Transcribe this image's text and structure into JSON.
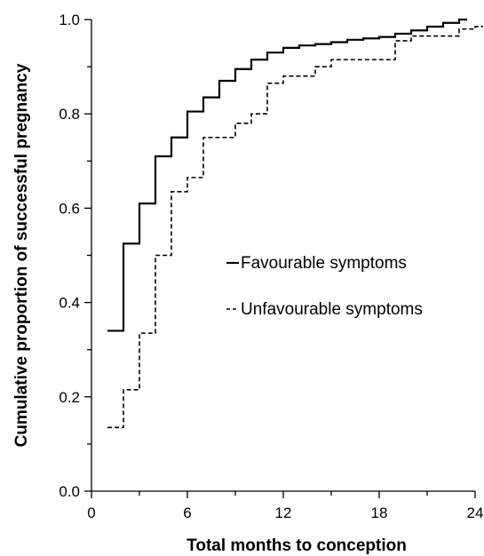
{
  "chart_data": {
    "type": "line",
    "title": "",
    "xlabel": "Total months to conception",
    "ylabel": "Cumulative proportion of successful pregnancy",
    "xlim": [
      0,
      24
    ],
    "ylim": [
      0,
      1
    ],
    "x_ticks": [
      0,
      6,
      12,
      18,
      24
    ],
    "y_ticks": [
      0,
      0.2,
      0.4,
      0.6,
      0.8,
      1
    ],
    "x_tick_labels": [
      "0",
      "6",
      "12",
      "18",
      "24"
    ],
    "y_tick_labels": [
      "0.0",
      "0.2",
      "0.4",
      "0.6",
      "0.8",
      "1.0"
    ],
    "grid": false,
    "legend_position": "center-right",
    "step": true,
    "series": [
      {
        "name": "Favourable symptoms",
        "style": "solid",
        "color": "#000000",
        "x": [
          1,
          2,
          3,
          4,
          5,
          6,
          7,
          8,
          9,
          10,
          11,
          12,
          13,
          14,
          15,
          16,
          17,
          18,
          19,
          20,
          21,
          22,
          23
        ],
        "y": [
          0.34,
          0.525,
          0.61,
          0.71,
          0.75,
          0.805,
          0.835,
          0.87,
          0.895,
          0.915,
          0.93,
          0.94,
          0.945,
          0.948,
          0.952,
          0.957,
          0.96,
          0.963,
          0.97,
          0.977,
          0.985,
          0.993,
          1.0
        ]
      },
      {
        "name": "Unfavourable symptoms",
        "style": "dashed",
        "color": "#000000",
        "x": [
          1,
          2,
          3,
          4,
          5,
          6,
          7,
          8,
          9,
          10,
          11,
          12,
          13,
          14,
          15,
          16,
          17,
          18,
          19,
          20,
          21,
          22,
          23,
          24
        ],
        "y": [
          0.135,
          0.215,
          0.335,
          0.5,
          0.635,
          0.665,
          0.75,
          0.75,
          0.78,
          0.8,
          0.865,
          0.88,
          0.88,
          0.9,
          0.915,
          0.915,
          0.915,
          0.915,
          0.955,
          0.965,
          0.965,
          0.965,
          0.98,
          0.985
        ]
      }
    ]
  }
}
